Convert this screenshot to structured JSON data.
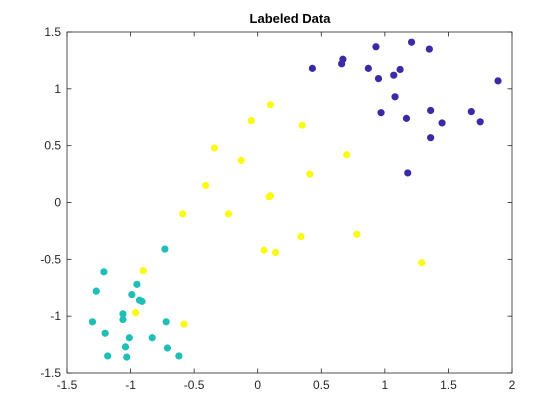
{
  "chart_data": {
    "type": "scatter",
    "title": "Labeled Data",
    "xlabel": "",
    "ylabel": "",
    "xlim": [
      -1.5,
      2
    ],
    "ylim": [
      -1.5,
      1.5
    ],
    "xticks": [
      -1.5,
      -1,
      -0.5,
      0,
      0.5,
      1,
      1.5,
      2
    ],
    "xtick_labels": [
      "-1.5",
      "-1",
      "-0.5",
      "0",
      "0.5",
      "1",
      "1.5",
      "2"
    ],
    "yticks": [
      -1.5,
      -1,
      -0.5,
      0,
      0.5,
      1,
      1.5
    ],
    "ytick_labels": [
      "-1.5",
      "-1",
      "-0.5",
      "0",
      "0.5",
      "1",
      "1.5"
    ],
    "grid": false,
    "series": [
      {
        "color": "#3a2aa5",
        "points": [
          [
            0.43,
            1.18
          ],
          [
            0.66,
            1.22
          ],
          [
            0.67,
            1.26
          ],
          [
            0.87,
            1.18
          ],
          [
            0.93,
            1.37
          ],
          [
            0.95,
            1.09
          ],
          [
            1.07,
            1.12
          ],
          [
            1.12,
            1.17
          ],
          [
            1.21,
            1.41
          ],
          [
            1.35,
            1.35
          ],
          [
            1.89,
            1.07
          ],
          [
            0.97,
            0.79
          ],
          [
            1.08,
            0.93
          ],
          [
            1.17,
            0.74
          ],
          [
            1.36,
            0.81
          ],
          [
            1.36,
            0.57
          ],
          [
            1.45,
            0.7
          ],
          [
            1.68,
            0.8
          ],
          [
            1.75,
            0.71
          ],
          [
            1.18,
            0.26
          ]
        ]
      },
      {
        "color": "#fafa14",
        "points": [
          [
            0.1,
            0.86
          ],
          [
            -0.05,
            0.72
          ],
          [
            0.35,
            0.68
          ],
          [
            -0.34,
            0.48
          ],
          [
            -0.13,
            0.37
          ],
          [
            0.7,
            0.42
          ],
          [
            0.41,
            0.25
          ],
          [
            -0.41,
            0.15
          ],
          [
            0.09,
            0.05
          ],
          [
            0.1,
            0.06
          ],
          [
            -0.59,
            -0.1
          ],
          [
            -0.23,
            -0.1
          ],
          [
            0.34,
            -0.3
          ],
          [
            0.78,
            -0.28
          ],
          [
            0.05,
            -0.42
          ],
          [
            0.14,
            -0.44
          ],
          [
            1.29,
            -0.53
          ],
          [
            -0.9,
            -0.6
          ],
          [
            -0.96,
            -0.97
          ],
          [
            -0.58,
            -1.07
          ]
        ]
      },
      {
        "color": "#1fbfb8",
        "points": [
          [
            -1.21,
            -0.61
          ],
          [
            -1.27,
            -0.78
          ],
          [
            -0.73,
            -0.41
          ],
          [
            -0.95,
            -0.72
          ],
          [
            -0.99,
            -0.81
          ],
          [
            -0.93,
            -0.86
          ],
          [
            -0.91,
            -0.87
          ],
          [
            -1.06,
            -0.98
          ],
          [
            -1.06,
            -1.03
          ],
          [
            -0.72,
            -1.05
          ],
          [
            -1.3,
            -1.05
          ],
          [
            -1.2,
            -1.15
          ],
          [
            -1.01,
            -1.19
          ],
          [
            -0.83,
            -1.19
          ],
          [
            -1.04,
            -1.27
          ],
          [
            -0.71,
            -1.28
          ],
          [
            -1.18,
            -1.35
          ],
          [
            -1.03,
            -1.36
          ],
          [
            -0.62,
            -1.35
          ]
        ]
      }
    ]
  }
}
